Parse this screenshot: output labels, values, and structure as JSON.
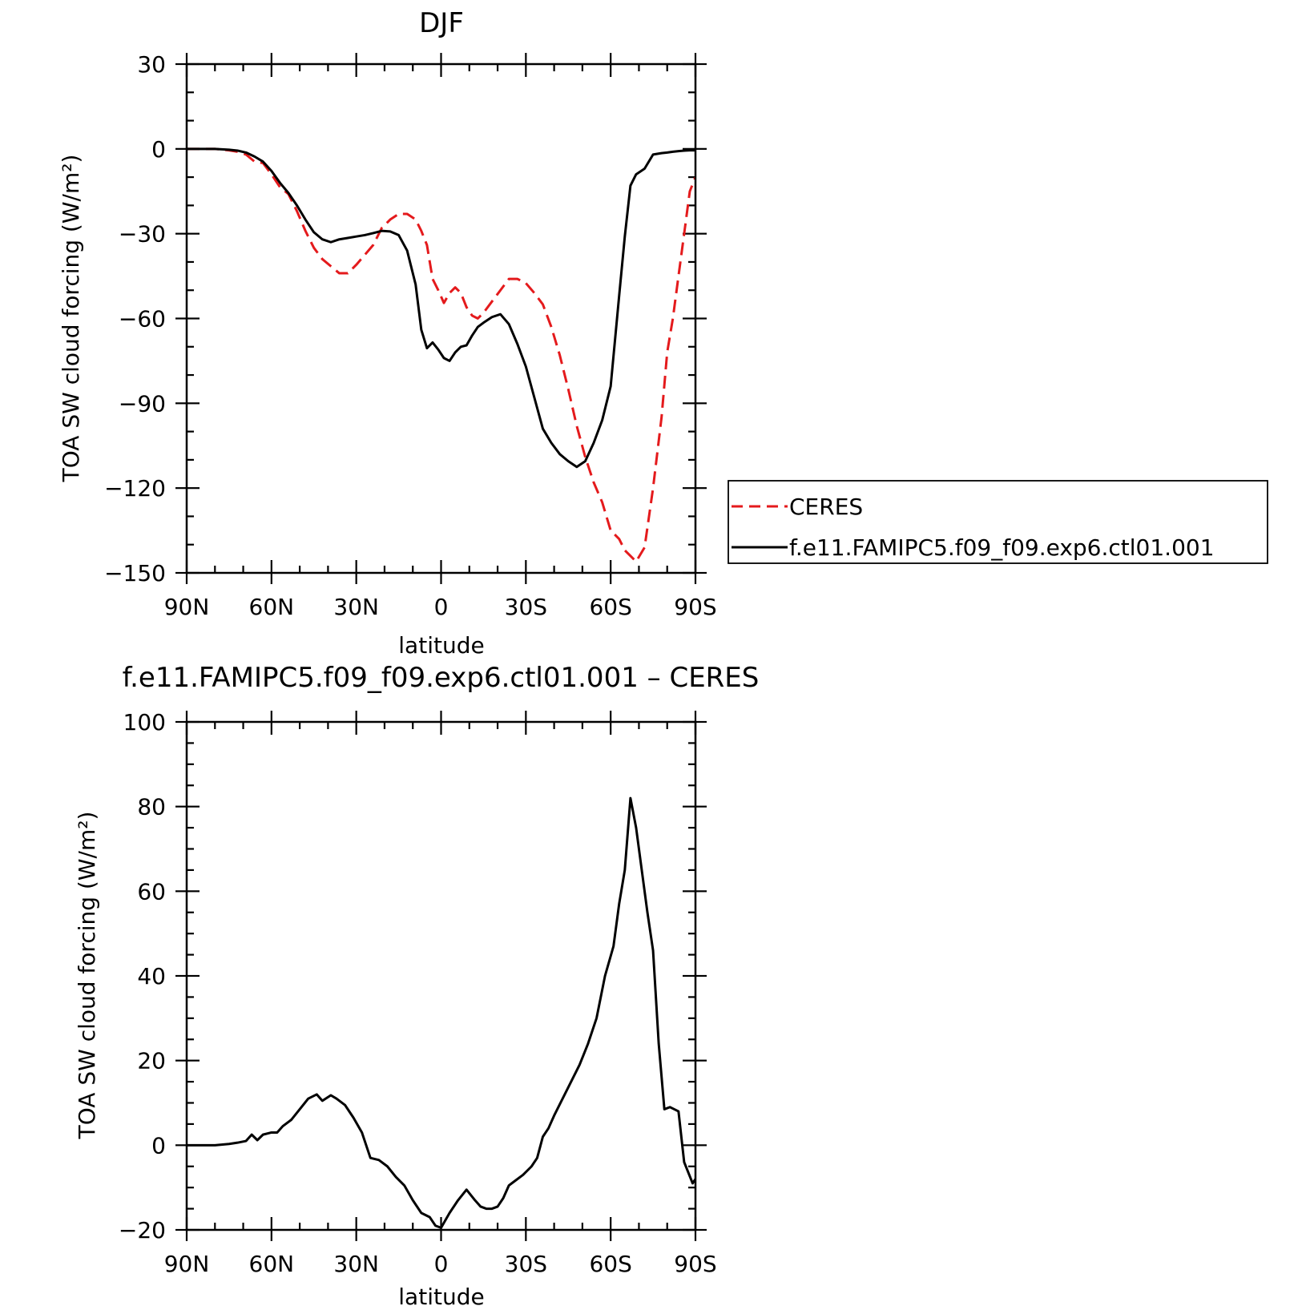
{
  "chart_data": [
    {
      "type": "line",
      "title": "DJF",
      "xlabel": "latitude",
      "ylabel": "TOA SW cloud forcing (W/m²)",
      "xlim": [
        90,
        -90
      ],
      "ylim": [
        -150,
        30
      ],
      "x_ticks": [
        90,
        60,
        30,
        0,
        -30,
        -60,
        -90
      ],
      "x_tick_labels": [
        "90N",
        "60N",
        "30N",
        "0",
        "30S",
        "60S",
        "90S"
      ],
      "y_ticks": [
        30,
        0,
        -30,
        -60,
        -90,
        -120,
        -150
      ],
      "y_tick_labels": [
        "30",
        "0",
        "−30",
        "−60",
        "−90",
        "−120",
        "−150"
      ],
      "legend": {
        "placement": "right-outside",
        "entries": [
          "CERES",
          "f.e11.FAMIPC5.f09_f09.exp6.ctl01.001"
        ]
      },
      "series": [
        {
          "name": "CERES",
          "color": "#e41a1c",
          "dash": "dashed",
          "x": [
            90,
            85,
            80,
            75,
            72,
            69,
            66,
            63,
            60,
            57,
            54,
            51,
            48,
            45,
            42,
            39,
            36,
            33,
            30,
            27,
            24,
            21,
            18,
            15,
            12,
            9,
            7,
            5,
            3,
            1,
            -1,
            -3,
            -5,
            -7,
            -9,
            -11,
            -13,
            -15,
            -18,
            -21,
            -24,
            -27,
            -30,
            -33,
            -36,
            -39,
            -42,
            -45,
            -48,
            -51,
            -54,
            -57,
            -60,
            -63,
            -65,
            -67,
            -69,
            -72,
            -75,
            -78,
            -80,
            -82,
            -84,
            -86,
            -88,
            -90
          ],
          "y": [
            0,
            0,
            0,
            -0.5,
            -1,
            -2,
            -4.5,
            -5,
            -9,
            -13.5,
            -16,
            -22,
            -29,
            -35,
            -39,
            -41.5,
            -44,
            -44,
            -41,
            -37.5,
            -34,
            -28,
            -25,
            -23,
            -23,
            -25,
            -29,
            -34,
            -46,
            -50,
            -54.5,
            -51,
            -49,
            -51,
            -56,
            -59,
            -60,
            -58,
            -54,
            -50,
            -46,
            -46,
            -47.5,
            -51,
            -55,
            -63,
            -73,
            -85,
            -98,
            -109,
            -118,
            -125,
            -135,
            -138,
            -142,
            -144,
            -146,
            -141,
            -120,
            -95,
            -72,
            -60,
            -45,
            -30,
            -15,
            -10
          ]
        },
        {
          "name": "f.e11.FAMIPC5.f09_f09.exp6.ctl01.001",
          "color": "#000000",
          "dash": "solid",
          "x": [
            90,
            85,
            80,
            75,
            72,
            69,
            66,
            63,
            60,
            57,
            54,
            51,
            48,
            45,
            42,
            39,
            36,
            33,
            30,
            27,
            24,
            21,
            18,
            15,
            12,
            9,
            7,
            5,
            3,
            1,
            -1,
            -3,
            -5,
            -7,
            -9,
            -11,
            -13,
            -15,
            -18,
            -21,
            -24,
            -27,
            -30,
            -33,
            -36,
            -39,
            -42,
            -45,
            -48,
            -51,
            -54,
            -57,
            -60,
            -63,
            -65,
            -67,
            -69,
            -72,
            -75,
            -78,
            -80,
            -82,
            -84,
            -86,
            -88,
            -90
          ],
          "y": [
            0,
            0,
            0,
            -0.3,
            -0.6,
            -1.3,
            -2.7,
            -4.5,
            -7.8,
            -12,
            -15.6,
            -20,
            -25,
            -29.5,
            -32,
            -33,
            -32,
            -31.5,
            -31,
            -30.5,
            -29.8,
            -29,
            -29.2,
            -30.5,
            -36,
            -48,
            -64,
            -70.5,
            -68.5,
            -71,
            -74,
            -75,
            -72,
            -70,
            -69.5,
            -66,
            -63,
            -61.5,
            -59.5,
            -58.5,
            -62,
            -69,
            -77,
            -88,
            -99,
            -104,
            -108,
            -110.5,
            -112.5,
            -110.5,
            -104,
            -96,
            -84,
            -52,
            -31,
            -13,
            -9,
            -7,
            -2,
            -1.5,
            -1.3,
            -1,
            -0.8,
            -0.6,
            -0.5,
            -0.5
          ]
        }
      ]
    },
    {
      "type": "line",
      "title": "f.e11.FAMIPC5.f09_f09.exp6.ctl01.001 – CERES",
      "xlabel": "latitude",
      "ylabel": "TOA SW cloud forcing (W/m²)",
      "xlim": [
        90,
        -90
      ],
      "ylim": [
        -20,
        100
      ],
      "x_ticks": [
        90,
        60,
        30,
        0,
        -30,
        -60,
        -90
      ],
      "x_tick_labels": [
        "90N",
        "60N",
        "30N",
        "0",
        "30S",
        "60S",
        "90S"
      ],
      "y_ticks": [
        100,
        80,
        60,
        40,
        20,
        0,
        -20
      ],
      "y_tick_labels": [
        "100",
        "80",
        "60",
        "40",
        "20",
        "0",
        "−20"
      ],
      "series": [
        {
          "color": "#000000",
          "dash": "solid",
          "x": [
            90,
            85,
            80,
            75,
            72,
            69,
            67,
            65,
            63,
            60,
            58,
            56,
            53,
            50,
            47,
            44,
            42,
            39,
            37,
            34,
            31,
            28,
            25,
            22,
            19,
            16,
            13,
            10,
            7,
            4,
            2,
            0,
            -3,
            -6,
            -9,
            -12,
            -14,
            -16,
            -18,
            -20,
            -22,
            -24,
            -26,
            -29,
            -32,
            -34,
            -36,
            -38,
            -40,
            -43,
            -46,
            -49,
            -52,
            -55,
            -58,
            -61,
            -63,
            -65,
            -67,
            -69,
            -71,
            -73,
            -75,
            -77,
            -79,
            -81,
            -84,
            -86,
            -89,
            -90
          ],
          "y": [
            0,
            0,
            0,
            0.3,
            0.6,
            1,
            2.5,
            1.2,
            2.5,
            3,
            3,
            4.5,
            6,
            8.5,
            11,
            12,
            10.5,
            11.8,
            11,
            9.5,
            6.5,
            3,
            -3,
            -3.5,
            -5,
            -7.5,
            -9.5,
            -13,
            -16,
            -17,
            -19,
            -19.5,
            -16,
            -13,
            -10.5,
            -13,
            -14.5,
            -15,
            -15,
            -14.5,
            -12.5,
            -9.5,
            -8.5,
            -7,
            -5,
            -3,
            2,
            4,
            7,
            11,
            15,
            19,
            24,
            30,
            40,
            47,
            57,
            65,
            82,
            75,
            65,
            55,
            46,
            24,
            8.5,
            9,
            8,
            -4,
            -9,
            -8
          ]
        }
      ]
    }
  ]
}
